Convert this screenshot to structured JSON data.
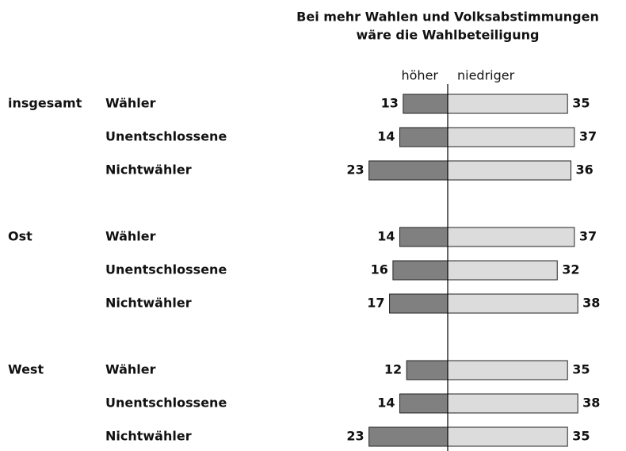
{
  "chart_data": {
    "type": "diverging_bar",
    "title": [
      "Bei mehr Wahlen und Volksabstimmungen",
      "wäre die Wahlbeteiligung"
    ],
    "group_labels": [
      "insgesamt",
      null,
      null,
      "Ost",
      null,
      null,
      "West",
      null,
      null
    ],
    "categories": [
      "Wähler",
      "Unentschlossene",
      "Nichtwähler",
      "Wähler",
      "Unentschlossene",
      "Nichtwähler",
      "Wähler",
      "Unentschlossene",
      "Nichtwähler"
    ],
    "series": [
      {
        "name": "höher",
        "color": "#808080",
        "values": [
          13,
          14,
          23,
          14,
          16,
          17,
          12,
          14,
          23
        ]
      },
      {
        "name": "niedriger",
        "color": "#dcdcdc",
        "values": [
          35,
          37,
          36,
          37,
          32,
          38,
          35,
          38,
          35
        ]
      }
    ]
  }
}
